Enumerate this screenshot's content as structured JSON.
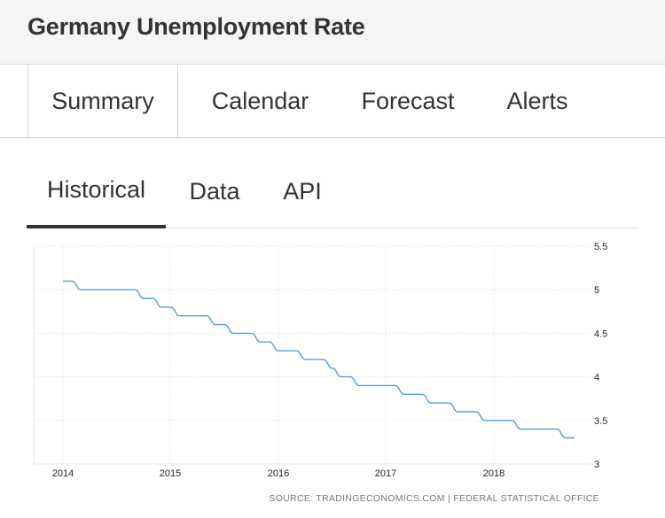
{
  "header": {
    "title": "Germany Unemployment Rate"
  },
  "main_tabs": [
    {
      "label": "Summary",
      "active": true
    },
    {
      "label": "Calendar",
      "active": false
    },
    {
      "label": "Forecast",
      "active": false
    },
    {
      "label": "Alerts",
      "active": false
    }
  ],
  "sub_tabs": [
    {
      "label": "Historical",
      "active": true
    },
    {
      "label": "Data",
      "active": false
    },
    {
      "label": "API",
      "active": false
    }
  ],
  "chart_data": {
    "type": "line",
    "ylim": [
      3,
      5.5
    ],
    "y_ticks": [
      "5.5",
      "5",
      "4.5",
      "4",
      "3.5",
      "3"
    ],
    "x_ticks": [
      "2014",
      "2015",
      "2016",
      "2017",
      "2018"
    ],
    "grid": true,
    "line_color": "#5b9bd5",
    "source": "SOURCE: TRADINGECONOMICS.COM | FEDERAL STATISTICAL OFFICE",
    "series": [
      {
        "values": [
          {
            "x": "2014-01",
            "y": 5.1
          },
          {
            "x": "2014-02",
            "y": 5.1
          },
          {
            "x": "2014-03",
            "y": 5.0
          },
          {
            "x": "2014-04",
            "y": 5.0
          },
          {
            "x": "2014-05",
            "y": 5.0
          },
          {
            "x": "2014-06",
            "y": 5.0
          },
          {
            "x": "2014-07",
            "y": 5.0
          },
          {
            "x": "2014-08",
            "y": 5.0
          },
          {
            "x": "2014-09",
            "y": 5.0
          },
          {
            "x": "2014-10",
            "y": 4.9
          },
          {
            "x": "2014-11",
            "y": 4.9
          },
          {
            "x": "2014-12",
            "y": 4.8
          },
          {
            "x": "2015-01",
            "y": 4.8
          },
          {
            "x": "2015-02",
            "y": 4.7
          },
          {
            "x": "2015-03",
            "y": 4.7
          },
          {
            "x": "2015-04",
            "y": 4.7
          },
          {
            "x": "2015-05",
            "y": 4.7
          },
          {
            "x": "2015-06",
            "y": 4.6
          },
          {
            "x": "2015-07",
            "y": 4.6
          },
          {
            "x": "2015-08",
            "y": 4.5
          },
          {
            "x": "2015-09",
            "y": 4.5
          },
          {
            "x": "2015-10",
            "y": 4.5
          },
          {
            "x": "2015-11",
            "y": 4.4
          },
          {
            "x": "2015-12",
            "y": 4.4
          },
          {
            "x": "2016-01",
            "y": 4.3
          },
          {
            "x": "2016-02",
            "y": 4.3
          },
          {
            "x": "2016-03",
            "y": 4.3
          },
          {
            "x": "2016-04",
            "y": 4.2
          },
          {
            "x": "2016-05",
            "y": 4.2
          },
          {
            "x": "2016-06",
            "y": 4.2
          },
          {
            "x": "2016-07",
            "y": 4.1
          },
          {
            "x": "2016-08",
            "y": 4.0
          },
          {
            "x": "2016-09",
            "y": 4.0
          },
          {
            "x": "2016-10",
            "y": 3.9
          },
          {
            "x": "2016-11",
            "y": 3.9
          },
          {
            "x": "2016-12",
            "y": 3.9
          },
          {
            "x": "2017-01",
            "y": 3.9
          },
          {
            "x": "2017-02",
            "y": 3.9
          },
          {
            "x": "2017-03",
            "y": 3.8
          },
          {
            "x": "2017-04",
            "y": 3.8
          },
          {
            "x": "2017-05",
            "y": 3.8
          },
          {
            "x": "2017-06",
            "y": 3.7
          },
          {
            "x": "2017-07",
            "y": 3.7
          },
          {
            "x": "2017-08",
            "y": 3.7
          },
          {
            "x": "2017-09",
            "y": 3.6
          },
          {
            "x": "2017-10",
            "y": 3.6
          },
          {
            "x": "2017-11",
            "y": 3.6
          },
          {
            "x": "2017-12",
            "y": 3.5
          },
          {
            "x": "2018-01",
            "y": 3.5
          },
          {
            "x": "2018-02",
            "y": 3.5
          },
          {
            "x": "2018-03",
            "y": 3.5
          },
          {
            "x": "2018-04",
            "y": 3.4
          },
          {
            "x": "2018-05",
            "y": 3.4
          },
          {
            "x": "2018-06",
            "y": 3.4
          },
          {
            "x": "2018-07",
            "y": 3.4
          },
          {
            "x": "2018-08",
            "y": 3.4
          },
          {
            "x": "2018-09",
            "y": 3.3
          },
          {
            "x": "2018-10",
            "y": 3.3
          }
        ]
      }
    ]
  }
}
